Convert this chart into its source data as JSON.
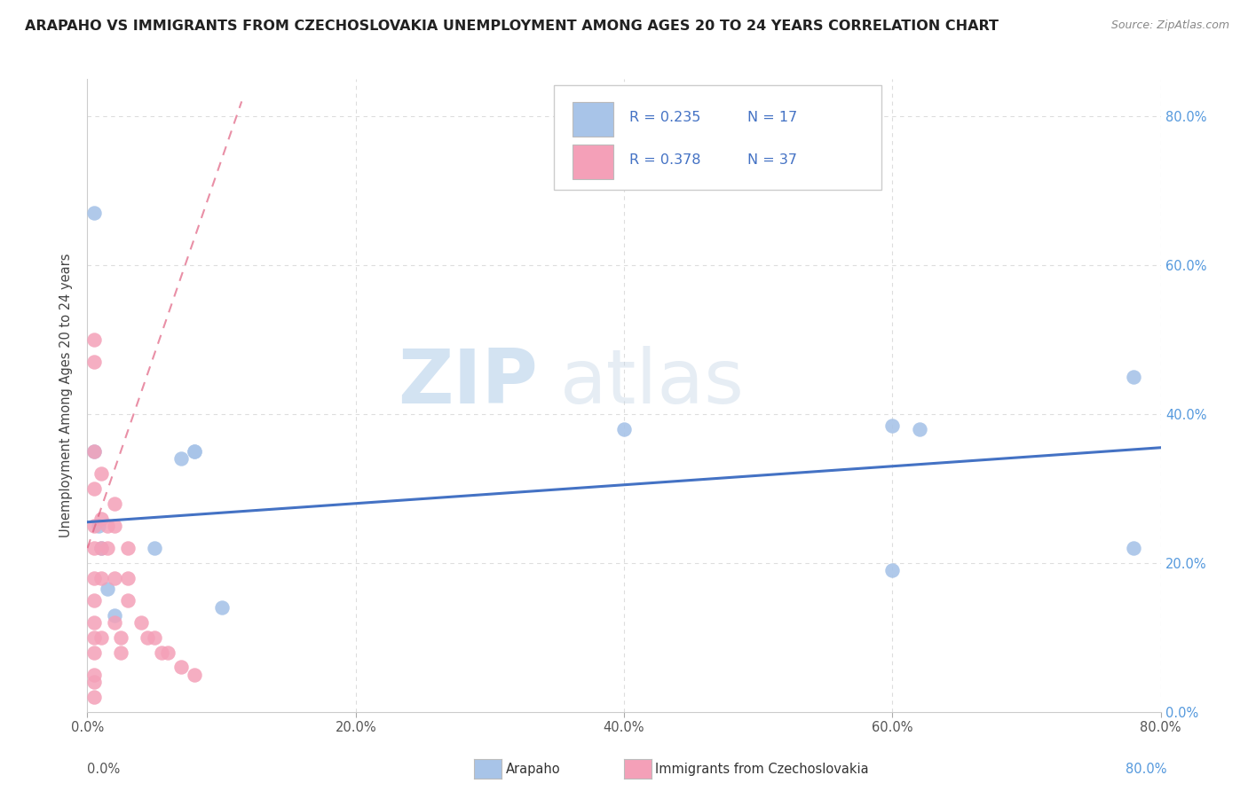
{
  "title": "ARAPAHO VS IMMIGRANTS FROM CZECHOSLOVAKIA UNEMPLOYMENT AMONG AGES 20 TO 24 YEARS CORRELATION CHART",
  "source": "Source: ZipAtlas.com",
  "ylabel": "Unemployment Among Ages 20 to 24 years",
  "xlim": [
    0,
    0.8
  ],
  "ylim": [
    0,
    0.85
  ],
  "R_arapaho": 0.235,
  "N_arapaho": 17,
  "R_czech": 0.378,
  "N_czech": 37,
  "arapaho_color": "#a8c4e8",
  "czech_color": "#f4a0b8",
  "trend_arapaho_color": "#4472c4",
  "trend_czech_color": "#e06080",
  "watermark_zip": "ZIP",
  "watermark_atlas": "atlas",
  "arapaho_x": [
    0.005,
    0.005,
    0.008,
    0.01,
    0.015,
    0.02,
    0.05,
    0.07,
    0.08,
    0.08,
    0.1,
    0.4,
    0.6,
    0.6,
    0.62,
    0.78,
    0.78
  ],
  "arapaho_y": [
    0.67,
    0.35,
    0.25,
    0.22,
    0.165,
    0.13,
    0.22,
    0.34,
    0.35,
    0.35,
    0.14,
    0.38,
    0.385,
    0.19,
    0.38,
    0.45,
    0.22
  ],
  "czech_x": [
    0.005,
    0.005,
    0.005,
    0.005,
    0.005,
    0.005,
    0.005,
    0.005,
    0.005,
    0.005,
    0.005,
    0.005,
    0.005,
    0.005,
    0.01,
    0.01,
    0.01,
    0.01,
    0.01,
    0.015,
    0.015,
    0.02,
    0.02,
    0.02,
    0.02,
    0.025,
    0.025,
    0.03,
    0.03,
    0.03,
    0.04,
    0.045,
    0.05,
    0.055,
    0.06,
    0.07,
    0.08
  ],
  "czech_y": [
    0.5,
    0.47,
    0.35,
    0.3,
    0.25,
    0.22,
    0.18,
    0.15,
    0.12,
    0.1,
    0.08,
    0.05,
    0.04,
    0.02,
    0.32,
    0.26,
    0.22,
    0.18,
    0.1,
    0.25,
    0.22,
    0.28,
    0.25,
    0.18,
    0.12,
    0.1,
    0.08,
    0.22,
    0.18,
    0.15,
    0.12,
    0.1,
    0.1,
    0.08,
    0.08,
    0.06,
    0.05
  ],
  "blue_trend_x0": 0.0,
  "blue_trend_y0": 0.255,
  "blue_trend_x1": 0.8,
  "blue_trend_y1": 0.355,
  "pink_trend_x0": 0.0,
  "pink_trend_y0": 0.22,
  "pink_trend_x1": 0.115,
  "pink_trend_y1": 0.82,
  "background_color": "#ffffff",
  "grid_color": "#dddddd",
  "tick_color_blue": "#5599dd",
  "legend_text_color": "#333333",
  "legend_value_color": "#4472c4"
}
